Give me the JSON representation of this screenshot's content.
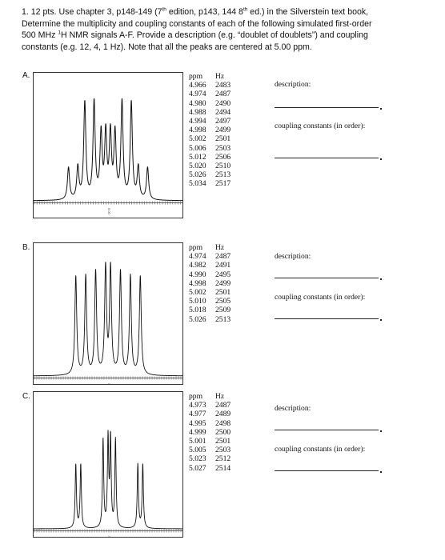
{
  "question": {
    "l1_a": "1. 12 pts. Use chapter 3, p148-149 (7",
    "l1_sup1": "th",
    "l1_b": " edition, p143, 144 8",
    "l1_sup2": "th",
    "l1_c": " ed.) in the Silverstein text book,",
    "l2": "Determine the multiplicity and coupling constants of each of the following simulated first-order",
    "l3_a": "500 MHz ",
    "l3_sup": "1",
    "l3_b": "H NMR signals A-F. Provide a description (e.g. “doublet of doublets”) and coupling",
    "l4": "constants (e.g. 12, 4, 1 Hz). Note that all the peaks are centered at 5.00 ppm."
  },
  "problems": [
    {
      "label": "A.",
      "axis_label": "5.00",
      "header": {
        "ppm": "ppm",
        "hz": "Hz"
      },
      "rows": [
        {
          "ppm": "4.966",
          "hz": "2483"
        },
        {
          "ppm": "4.974",
          "hz": "2487"
        },
        {
          "ppm": "4.980",
          "hz": "2490"
        },
        {
          "ppm": "4.988",
          "hz": "2494"
        },
        {
          "ppm": "4.994",
          "hz": "2497"
        },
        {
          "ppm": "4.998",
          "hz": "2499"
        },
        {
          "ppm": "5.002",
          "hz": "2501"
        },
        {
          "ppm": "5.006",
          "hz": "2503"
        },
        {
          "ppm": "5.012",
          "hz": "2506"
        },
        {
          "ppm": "5.020",
          "hz": "2510"
        },
        {
          "ppm": "5.026",
          "hz": "2513"
        },
        {
          "ppm": "5.034",
          "hz": "2517"
        }
      ],
      "description_label": "description:",
      "coupling_label": "coupling constants (in order):",
      "peaks": [
        {
          "hz": 2483,
          "h": 0.25
        },
        {
          "hz": 2487,
          "h": 0.25
        },
        {
          "hz": 2490,
          "h": 0.75
        },
        {
          "hz": 2494,
          "h": 0.75
        },
        {
          "hz": 2497,
          "h": 0.5
        },
        {
          "hz": 2499,
          "h": 0.5
        },
        {
          "hz": 2501,
          "h": 0.5
        },
        {
          "hz": 2503,
          "h": 0.5
        },
        {
          "hz": 2506,
          "h": 0.75
        },
        {
          "hz": 2510,
          "h": 0.75
        },
        {
          "hz": 2513,
          "h": 0.25
        },
        {
          "hz": 2517,
          "h": 0.25
        }
      ]
    },
    {
      "label": "B.",
      "axis_label": "5.00",
      "header": {
        "ppm": "ppm",
        "hz": "Hz"
      },
      "rows": [
        {
          "ppm": "4.974",
          "hz": "2487"
        },
        {
          "ppm": "4.982",
          "hz": "2491"
        },
        {
          "ppm": "4.990",
          "hz": "2495"
        },
        {
          "ppm": "4.998",
          "hz": "2499"
        },
        {
          "ppm": "5.002",
          "hz": "2501"
        },
        {
          "ppm": "5.010",
          "hz": "2505"
        },
        {
          "ppm": "5.018",
          "hz": "2509"
        },
        {
          "ppm": "5.026",
          "hz": "2513"
        }
      ],
      "description_label": "description:",
      "coupling_label": "coupling constants (in order):",
      "peaks": [
        {
          "hz": 2487,
          "h": 0.88
        },
        {
          "hz": 2491,
          "h": 0.88
        },
        {
          "hz": 2495,
          "h": 0.92
        },
        {
          "hz": 2499,
          "h": 0.95
        },
        {
          "hz": 2501,
          "h": 0.95
        },
        {
          "hz": 2505,
          "h": 0.92
        },
        {
          "hz": 2509,
          "h": 0.88
        },
        {
          "hz": 2513,
          "h": 0.88
        }
      ]
    },
    {
      "label": "C.",
      "axis_label": "5.00",
      "header": {
        "ppm": "ppm",
        "hz": "Hz"
      },
      "rows": [
        {
          "ppm": "4.973",
          "hz": "2487"
        },
        {
          "ppm": "4.977",
          "hz": "2489"
        },
        {
          "ppm": "4.995",
          "hz": "2498"
        },
        {
          "ppm": "4.999",
          "hz": "2500"
        },
        {
          "ppm": "5.001",
          "hz": "2501"
        },
        {
          "ppm": "5.005",
          "hz": "2503"
        },
        {
          "ppm": "5.023",
          "hz": "2512"
        },
        {
          "ppm": "5.027",
          "hz": "2514"
        }
      ],
      "description_label": "description:",
      "coupling_label": "coupling constants (in order):",
      "peaks": [
        {
          "hz": 2487,
          "h": 0.42
        },
        {
          "hz": 2489,
          "h": 0.42
        },
        {
          "hz": 2498,
          "h": 0.58
        },
        {
          "hz": 2500,
          "h": 0.58
        },
        {
          "hz": 2501,
          "h": 0.58
        },
        {
          "hz": 2503,
          "h": 0.58
        },
        {
          "hz": 2512,
          "h": 0.42
        },
        {
          "hz": 2514,
          "h": 0.42
        }
      ]
    }
  ]
}
